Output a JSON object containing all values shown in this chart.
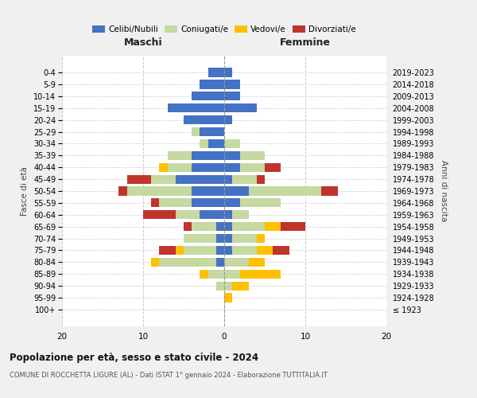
{
  "age_groups": [
    "100+",
    "95-99",
    "90-94",
    "85-89",
    "80-84",
    "75-79",
    "70-74",
    "65-69",
    "60-64",
    "55-59",
    "50-54",
    "45-49",
    "40-44",
    "35-39",
    "30-34",
    "25-29",
    "20-24",
    "15-19",
    "10-14",
    "5-9",
    "0-4"
  ],
  "birth_years": [
    "≤ 1923",
    "1924-1928",
    "1929-1933",
    "1934-1938",
    "1939-1943",
    "1944-1948",
    "1949-1953",
    "1954-1958",
    "1959-1963",
    "1964-1968",
    "1969-1973",
    "1974-1978",
    "1979-1983",
    "1984-1988",
    "1989-1993",
    "1994-1998",
    "1999-2003",
    "2004-2008",
    "2009-2013",
    "2014-2018",
    "2019-2023"
  ],
  "maschi": {
    "celibi": [
      0,
      0,
      0,
      0,
      1,
      1,
      1,
      1,
      3,
      4,
      4,
      6,
      4,
      4,
      2,
      3,
      5,
      7,
      4,
      3,
      2
    ],
    "coniugati": [
      0,
      0,
      1,
      2,
      7,
      4,
      4,
      3,
      3,
      4,
      8,
      3,
      3,
      3,
      1,
      1,
      0,
      0,
      0,
      0,
      0
    ],
    "vedovi": [
      0,
      0,
      0,
      1,
      1,
      1,
      0,
      0,
      0,
      0,
      0,
      0,
      1,
      0,
      0,
      0,
      0,
      0,
      0,
      0,
      0
    ],
    "divorziati": [
      0,
      0,
      0,
      0,
      0,
      2,
      0,
      1,
      4,
      1,
      1,
      3,
      0,
      0,
      0,
      0,
      0,
      0,
      0,
      0,
      0
    ]
  },
  "femmine": {
    "nubili": [
      0,
      0,
      0,
      0,
      0,
      1,
      1,
      1,
      1,
      2,
      3,
      1,
      2,
      2,
      0,
      0,
      1,
      4,
      2,
      2,
      1
    ],
    "coniugate": [
      0,
      0,
      1,
      2,
      3,
      3,
      3,
      4,
      2,
      5,
      9,
      3,
      3,
      3,
      2,
      0,
      0,
      0,
      0,
      0,
      0
    ],
    "vedove": [
      0,
      1,
      2,
      5,
      2,
      2,
      1,
      2,
      0,
      0,
      0,
      0,
      0,
      0,
      0,
      0,
      0,
      0,
      0,
      0,
      0
    ],
    "divorziate": [
      0,
      0,
      0,
      0,
      0,
      2,
      0,
      3,
      0,
      0,
      2,
      1,
      2,
      0,
      0,
      0,
      0,
      0,
      0,
      0,
      0
    ]
  },
  "colors": {
    "celibi": "#4472c4",
    "coniugati": "#c5d9a0",
    "vedovi": "#ffc000",
    "divorziati": "#c0342c"
  },
  "xlim": 20,
  "title": "Popolazione per età, sesso e stato civile - 2024",
  "subtitle": "COMUNE DI ROCCHETTA LIGURE (AL) - Dati ISTAT 1° gennaio 2024 - Elaborazione TUTTITALIA.IT",
  "ylabel_left": "Fasce di età",
  "ylabel_right": "Anni di nascita",
  "xlabel_left": "Maschi",
  "xlabel_right": "Femmine",
  "bg_color": "#f0f0f0",
  "plot_bg_color": "#ffffff"
}
